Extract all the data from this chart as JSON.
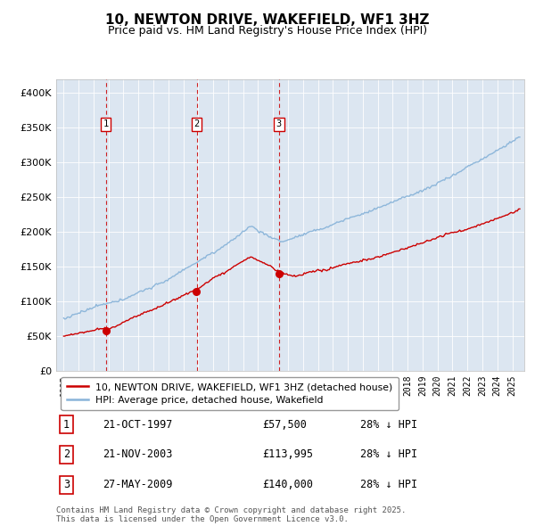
{
  "title": "10, NEWTON DRIVE, WAKEFIELD, WF1 3HZ",
  "subtitle": "Price paid vs. HM Land Registry's House Price Index (HPI)",
  "title_fontsize": 11,
  "subtitle_fontsize": 9,
  "bg_color": "#dce6f1",
  "fig_bg_color": "#ffffff",
  "red_line_color": "#cc0000",
  "blue_line_color": "#89b4d9",
  "dashed_line_color": "#cc0000",
  "ylim": [
    0,
    420000
  ],
  "yticks": [
    0,
    50000,
    100000,
    150000,
    200000,
    250000,
    300000,
    350000,
    400000
  ],
  "ytick_labels": [
    "£0",
    "£50K",
    "£100K",
    "£150K",
    "£200K",
    "£250K",
    "£300K",
    "£350K",
    "£400K"
  ],
  "sale_dates": [
    1997.81,
    2003.89,
    2009.4
  ],
  "sale_prices": [
    57500,
    113995,
    140000
  ],
  "sale_labels": [
    "1",
    "2",
    "3"
  ],
  "legend_red": "10, NEWTON DRIVE, WAKEFIELD, WF1 3HZ (detached house)",
  "legend_blue": "HPI: Average price, detached house, Wakefield",
  "table_rows": [
    [
      "1",
      "21-OCT-1997",
      "£57,500",
      "28% ↓ HPI"
    ],
    [
      "2",
      "21-NOV-2003",
      "£113,995",
      "28% ↓ HPI"
    ],
    [
      "3",
      "27-MAY-2009",
      "£140,000",
      "28% ↓ HPI"
    ]
  ],
  "footnote": "Contains HM Land Registry data © Crown copyright and database right 2025.\nThis data is licensed under the Open Government Licence v3.0.",
  "xmin": 1994.5,
  "xmax": 2025.8
}
